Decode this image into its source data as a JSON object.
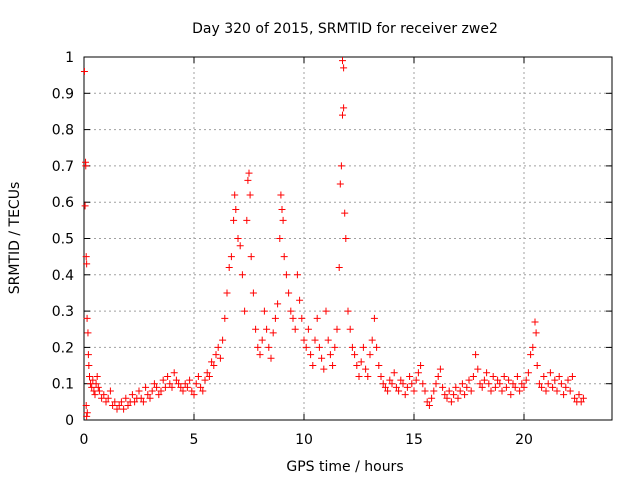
{
  "chart_data": {
    "type": "scatter",
    "title": "Day 320 of 2015, SRMTID for receiver zwe2",
    "xlabel": "GPS time / hours",
    "ylabel": "SRMTID / TECUs",
    "xlim": [
      0,
      24
    ],
    "ylim": [
      0,
      1
    ],
    "x_ticks": [
      0,
      5,
      10,
      15,
      20
    ],
    "x_tick_labels": [
      "0",
      "5",
      "10",
      "15",
      "20"
    ],
    "y_ticks": [
      0,
      0.1,
      0.2,
      0.3,
      0.4,
      0.5,
      0.6,
      0.7,
      0.8,
      0.9,
      1
    ],
    "y_tick_labels": [
      "0",
      "0.1",
      "0.2",
      "0.3",
      "0.4",
      "0.5",
      "0.6",
      "0.7",
      "0.8",
      "0.9",
      "1"
    ],
    "grid": true,
    "marker": "+",
    "color": "#ff0000",
    "series": [
      {
        "name": "SRMTID",
        "points": [
          [
            0.02,
            0.96
          ],
          [
            0.05,
            0.59
          ],
          [
            0.07,
            0.71
          ],
          [
            0.08,
            0.7
          ],
          [
            0.1,
            0.45
          ],
          [
            0.12,
            0.43
          ],
          [
            0.14,
            0.28
          ],
          [
            0.1,
            0.04
          ],
          [
            0.12,
            0.01
          ],
          [
            0.15,
            0.02
          ],
          [
            0.18,
            0.24
          ],
          [
            0.2,
            0.18
          ],
          [
            0.22,
            0.15
          ],
          [
            0.25,
            0.12
          ],
          [
            0.3,
            0.1
          ],
          [
            0.35,
            0.09
          ],
          [
            0.4,
            0.11
          ],
          [
            0.45,
            0.08
          ],
          [
            0.5,
            0.07
          ],
          [
            0.55,
            0.1
          ],
          [
            0.6,
            0.12
          ],
          [
            0.65,
            0.09
          ],
          [
            0.7,
            0.08
          ],
          [
            0.8,
            0.06
          ],
          [
            0.9,
            0.07
          ],
          [
            1.0,
            0.05
          ],
          [
            1.1,
            0.06
          ],
          [
            1.2,
            0.08
          ],
          [
            1.3,
            0.04
          ],
          [
            1.4,
            0.05
          ],
          [
            1.5,
            0.03
          ],
          [
            1.6,
            0.04
          ],
          [
            1.7,
            0.05
          ],
          [
            1.8,
            0.03
          ],
          [
            1.9,
            0.06
          ],
          [
            2.0,
            0.04
          ],
          [
            2.1,
            0.05
          ],
          [
            2.2,
            0.07
          ],
          [
            2.3,
            0.05
          ],
          [
            2.4,
            0.06
          ],
          [
            2.5,
            0.08
          ],
          [
            2.6,
            0.06
          ],
          [
            2.7,
            0.05
          ],
          [
            2.8,
            0.09
          ],
          [
            2.9,
            0.07
          ],
          [
            3.0,
            0.06
          ],
          [
            3.1,
            0.08
          ],
          [
            3.2,
            0.1
          ],
          [
            3.3,
            0.09
          ],
          [
            3.4,
            0.07
          ],
          [
            3.5,
            0.08
          ],
          [
            3.6,
            0.11
          ],
          [
            3.7,
            0.09
          ],
          [
            3.8,
            0.12
          ],
          [
            3.9,
            0.1
          ],
          [
            4.0,
            0.09
          ],
          [
            4.1,
            0.13
          ],
          [
            4.2,
            0.11
          ],
          [
            4.3,
            0.1
          ],
          [
            4.4,
            0.09
          ],
          [
            4.5,
            0.08
          ],
          [
            4.6,
            0.1
          ],
          [
            4.7,
            0.09
          ],
          [
            4.8,
            0.11
          ],
          [
            4.9,
            0.08
          ],
          [
            5.0,
            0.07
          ],
          [
            5.1,
            0.1
          ],
          [
            5.2,
            0.12
          ],
          [
            5.3,
            0.09
          ],
          [
            5.4,
            0.08
          ],
          [
            5.5,
            0.11
          ],
          [
            5.6,
            0.13
          ],
          [
            5.7,
            0.12
          ],
          [
            5.8,
            0.16
          ],
          [
            5.9,
            0.15
          ],
          [
            6.0,
            0.18
          ],
          [
            6.1,
            0.2
          ],
          [
            6.2,
            0.17
          ],
          [
            6.3,
            0.22
          ],
          [
            6.4,
            0.28
          ],
          [
            6.5,
            0.35
          ],
          [
            6.6,
            0.42
          ],
          [
            6.7,
            0.45
          ],
          [
            6.8,
            0.55
          ],
          [
            6.85,
            0.62
          ],
          [
            6.9,
            0.58
          ],
          [
            7.0,
            0.5
          ],
          [
            7.1,
            0.48
          ],
          [
            7.2,
            0.4
          ],
          [
            7.3,
            0.3
          ],
          [
            7.4,
            0.55
          ],
          [
            7.45,
            0.66
          ],
          [
            7.5,
            0.68
          ],
          [
            7.55,
            0.62
          ],
          [
            7.6,
            0.45
          ],
          [
            7.7,
            0.35
          ],
          [
            7.8,
            0.25
          ],
          [
            7.9,
            0.2
          ],
          [
            8.0,
            0.18
          ],
          [
            8.1,
            0.22
          ],
          [
            8.2,
            0.3
          ],
          [
            8.3,
            0.25
          ],
          [
            8.4,
            0.2
          ],
          [
            8.5,
            0.17
          ],
          [
            8.6,
            0.24
          ],
          [
            8.7,
            0.28
          ],
          [
            8.8,
            0.32
          ],
          [
            8.9,
            0.5
          ],
          [
            8.95,
            0.62
          ],
          [
            9.0,
            0.58
          ],
          [
            9.05,
            0.55
          ],
          [
            9.1,
            0.45
          ],
          [
            9.2,
            0.4
          ],
          [
            9.3,
            0.35
          ],
          [
            9.4,
            0.3
          ],
          [
            9.5,
            0.28
          ],
          [
            9.6,
            0.25
          ],
          [
            9.7,
            0.4
          ],
          [
            9.8,
            0.33
          ],
          [
            9.9,
            0.28
          ],
          [
            10.0,
            0.22
          ],
          [
            10.1,
            0.2
          ],
          [
            10.2,
            0.25
          ],
          [
            10.3,
            0.18
          ],
          [
            10.4,
            0.15
          ],
          [
            10.5,
            0.22
          ],
          [
            10.6,
            0.28
          ],
          [
            10.7,
            0.2
          ],
          [
            10.8,
            0.17
          ],
          [
            10.9,
            0.14
          ],
          [
            11.0,
            0.3
          ],
          [
            11.1,
            0.22
          ],
          [
            11.2,
            0.18
          ],
          [
            11.3,
            0.15
          ],
          [
            11.4,
            0.2
          ],
          [
            11.5,
            0.25
          ],
          [
            11.6,
            0.42
          ],
          [
            11.65,
            0.65
          ],
          [
            11.7,
            0.7
          ],
          [
            11.75,
            0.84
          ],
          [
            11.75,
            0.99
          ],
          [
            11.8,
            0.97
          ],
          [
            11.8,
            0.86
          ],
          [
            11.85,
            0.57
          ],
          [
            11.9,
            0.5
          ],
          [
            12.0,
            0.3
          ],
          [
            12.1,
            0.25
          ],
          [
            12.2,
            0.2
          ],
          [
            12.3,
            0.18
          ],
          [
            12.4,
            0.15
          ],
          [
            12.5,
            0.12
          ],
          [
            12.6,
            0.16
          ],
          [
            12.7,
            0.2
          ],
          [
            12.8,
            0.14
          ],
          [
            12.9,
            0.12
          ],
          [
            13.0,
            0.18
          ],
          [
            13.1,
            0.22
          ],
          [
            13.2,
            0.28
          ],
          [
            13.3,
            0.2
          ],
          [
            13.4,
            0.15
          ],
          [
            13.5,
            0.12
          ],
          [
            13.6,
            0.1
          ],
          [
            13.7,
            0.09
          ],
          [
            13.8,
            0.08
          ],
          [
            13.9,
            0.11
          ],
          [
            14.0,
            0.1
          ],
          [
            14.1,
            0.13
          ],
          [
            14.2,
            0.09
          ],
          [
            14.3,
            0.08
          ],
          [
            14.4,
            0.11
          ],
          [
            14.5,
            0.1
          ],
          [
            14.6,
            0.07
          ],
          [
            14.7,
            0.09
          ],
          [
            14.8,
            0.12
          ],
          [
            14.9,
            0.1
          ],
          [
            15.0,
            0.08
          ],
          [
            15.1,
            0.11
          ],
          [
            15.2,
            0.13
          ],
          [
            15.3,
            0.15
          ],
          [
            15.4,
            0.1
          ],
          [
            15.5,
            0.08
          ],
          [
            15.6,
            0.05
          ],
          [
            15.7,
            0.04
          ],
          [
            15.8,
            0.06
          ],
          [
            15.9,
            0.08
          ],
          [
            16.0,
            0.1
          ],
          [
            16.1,
            0.12
          ],
          [
            16.2,
            0.14
          ],
          [
            16.3,
            0.09
          ],
          [
            16.4,
            0.07
          ],
          [
            16.5,
            0.06
          ],
          [
            16.6,
            0.08
          ],
          [
            16.7,
            0.05
          ],
          [
            16.8,
            0.07
          ],
          [
            16.9,
            0.09
          ],
          [
            17.0,
            0.06
          ],
          [
            17.1,
            0.08
          ],
          [
            17.2,
            0.1
          ],
          [
            17.3,
            0.07
          ],
          [
            17.4,
            0.09
          ],
          [
            17.5,
            0.11
          ],
          [
            17.6,
            0.08
          ],
          [
            17.7,
            0.12
          ],
          [
            17.8,
            0.18
          ],
          [
            17.9,
            0.14
          ],
          [
            18.0,
            0.1
          ],
          [
            18.1,
            0.09
          ],
          [
            18.2,
            0.11
          ],
          [
            18.3,
            0.13
          ],
          [
            18.4,
            0.1
          ],
          [
            18.5,
            0.08
          ],
          [
            18.6,
            0.12
          ],
          [
            18.7,
            0.09
          ],
          [
            18.8,
            0.11
          ],
          [
            18.9,
            0.1
          ],
          [
            19.0,
            0.08
          ],
          [
            19.1,
            0.12
          ],
          [
            19.2,
            0.09
          ],
          [
            19.3,
            0.11
          ],
          [
            19.4,
            0.07
          ],
          [
            19.5,
            0.1
          ],
          [
            19.6,
            0.09
          ],
          [
            19.7,
            0.12
          ],
          [
            19.8,
            0.08
          ],
          [
            19.9,
            0.1
          ],
          [
            20.0,
            0.09
          ],
          [
            20.1,
            0.11
          ],
          [
            20.2,
            0.13
          ],
          [
            20.3,
            0.18
          ],
          [
            20.4,
            0.2
          ],
          [
            20.5,
            0.27
          ],
          [
            20.55,
            0.24
          ],
          [
            20.6,
            0.15
          ],
          [
            20.7,
            0.1
          ],
          [
            20.8,
            0.09
          ],
          [
            20.9,
            0.12
          ],
          [
            21.0,
            0.08
          ],
          [
            21.1,
            0.1
          ],
          [
            21.2,
            0.13
          ],
          [
            21.3,
            0.09
          ],
          [
            21.4,
            0.11
          ],
          [
            21.5,
            0.08
          ],
          [
            21.6,
            0.12
          ],
          [
            21.7,
            0.1
          ],
          [
            21.8,
            0.07
          ],
          [
            21.9,
            0.09
          ],
          [
            22.0,
            0.11
          ],
          [
            22.1,
            0.08
          ],
          [
            22.2,
            0.12
          ],
          [
            22.3,
            0.06
          ],
          [
            22.4,
            0.05
          ],
          [
            22.5,
            0.07
          ],
          [
            22.6,
            0.05
          ],
          [
            22.7,
            0.06
          ]
        ]
      }
    ]
  }
}
